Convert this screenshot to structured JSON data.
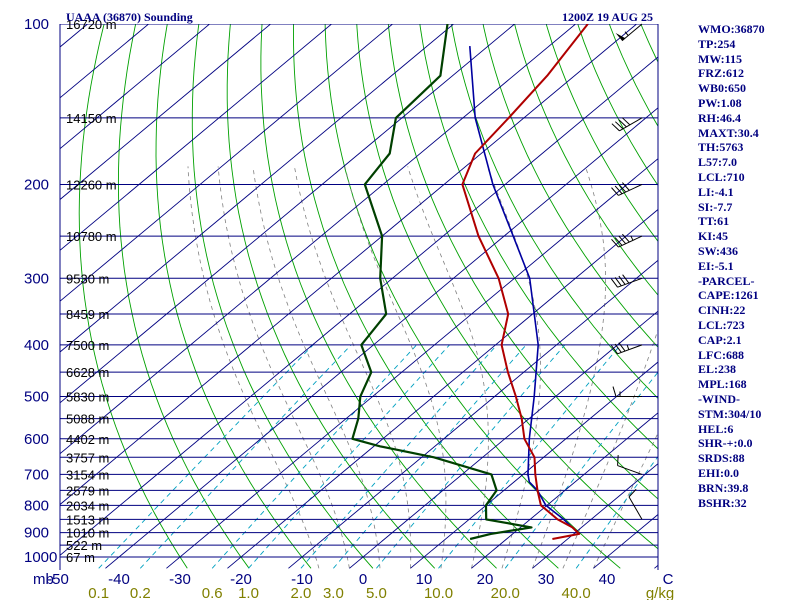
{
  "header": {
    "station": "UAAA (36870) Sounding",
    "time": "1200Z 19 AUG 25"
  },
  "stats": [
    "WMO:36870",
    "TP:254",
    "MW:115",
    "FRZ:612",
    "WB0:650",
    "PW:1.08",
    "RH:46.4",
    "MAXT:30.4",
    "TH:5763",
    "L57:7.0",
    "LCL:710",
    "LI:-4.1",
    "SI:-7.7",
    "TT:61",
    "KI:45",
    "SW:436",
    "EI:-5.1",
    "-PARCEL-",
    "CAPE:1261",
    "CINH:22",
    "LCL:723",
    "CAP:2.1",
    "LFC:688",
    "EL:238",
    "MPL:168",
    "-WIND-",
    "STM:304/10",
    "HEL:6",
    "SHR-+:0.0",
    "SRDS:88",
    "EHI:0.0",
    "BRN:39.8",
    "BSHR:32"
  ],
  "colors": {
    "isobar": "#000080",
    "isotherm": "#000080",
    "dry_adiabat": "#00a000",
    "mixing_ratio": "#00a0c0",
    "moist_adiabat": "#808080",
    "temperature": "#b00000",
    "dewpoint": "#004000",
    "parcel": "#0000a0",
    "axis_text": "#000080",
    "mixing_text": "#808000"
  },
  "chart_data": {
    "type": "skew-t",
    "y_unit": "mb",
    "x_unit": "C",
    "pressure_ticks": [
      100,
      200,
      300,
      400,
      500,
      600,
      700,
      800,
      900,
      1000
    ],
    "height_labels": [
      {
        "p": 100,
        "label": "16720 m"
      },
      {
        "p": 150,
        "label": "14150 m"
      },
      {
        "p": 200,
        "label": "12260 m"
      },
      {
        "p": 250,
        "label": "10780 m"
      },
      {
        "p": 300,
        "label": "9530 m"
      },
      {
        "p": 350,
        "label": "8459 m"
      },
      {
        "p": 400,
        "label": "7500 m"
      },
      {
        "p": 450,
        "label": "6628 m"
      },
      {
        "p": 500,
        "label": "5830 m"
      },
      {
        "p": 550,
        "label": "5088 m"
      },
      {
        "p": 600,
        "label": "4402 m"
      },
      {
        "p": 650,
        "label": "3757 m"
      },
      {
        "p": 700,
        "label": "3154 m"
      },
      {
        "p": 750,
        "label": "2579 m"
      },
      {
        "p": 800,
        "label": "2034 m"
      },
      {
        "p": 850,
        "label": "1513 m"
      },
      {
        "p": 900,
        "label": "1010 m"
      },
      {
        "p": 950,
        "label": "522 m"
      },
      {
        "p": 1000,
        "label": "67 m"
      }
    ],
    "temperature_ticks": [
      -50,
      -40,
      -30,
      -20,
      -10,
      0,
      10,
      20,
      30,
      40,
      50
    ],
    "temperature_tick_labels": [
      "-50",
      "-40",
      "-30",
      "-20",
      "-10",
      "0",
      "10",
      "20",
      "30",
      "40",
      "C"
    ],
    "mixing_ratio_labels": [
      {
        "w": 0.1,
        "label": "0.1"
      },
      {
        "w": 0.2,
        "label": "0.2"
      },
      {
        "w": 0.6,
        "label": "0.6"
      },
      {
        "w": 1.0,
        "label": "1.0"
      },
      {
        "w": 2.0,
        "label": "2.0"
      },
      {
        "w": 3.0,
        "label": "3.0"
      },
      {
        "w": 5.0,
        "label": "5.0"
      },
      {
        "w": 10.0,
        "label": "10.0"
      },
      {
        "w": 20.0,
        "label": "20.0"
      },
      {
        "w": 40.0,
        "label": "40.0"
      }
    ],
    "mixing_ratio_unit": "g/kg",
    "series": [
      {
        "name": "temperature",
        "points": [
          [
            925,
            27.5
          ],
          [
            905,
            30.9
          ],
          [
            880,
            28.5
          ],
          [
            850,
            24.5
          ],
          [
            800,
            19.0
          ],
          [
            750,
            15.5
          ],
          [
            700,
            12.0
          ],
          [
            650,
            8.5
          ],
          [
            600,
            3.2
          ],
          [
            550,
            -1.2
          ],
          [
            500,
            -6.5
          ],
          [
            450,
            -12.6
          ],
          [
            400,
            -19.0
          ],
          [
            350,
            -24.0
          ],
          [
            300,
            -32.6
          ],
          [
            250,
            -44.2
          ],
          [
            200,
            -57.0
          ],
          [
            175,
            -61.0
          ],
          [
            150,
            -62.5
          ],
          [
            125,
            -64.5
          ],
          [
            100,
            -68.0
          ]
        ]
      },
      {
        "name": "dewpoint",
        "points": [
          [
            925,
            14.0
          ],
          [
            905,
            16.4
          ],
          [
            880,
            21.8
          ],
          [
            850,
            12.8
          ],
          [
            800,
            10.0
          ],
          [
            750,
            8.8
          ],
          [
            700,
            4.8
          ],
          [
            650,
            -8.0
          ],
          [
            620,
            -19.0
          ],
          [
            600,
            -25.0
          ],
          [
            550,
            -28.0
          ],
          [
            500,
            -32.0
          ],
          [
            450,
            -35.0
          ],
          [
            400,
            -42.0
          ],
          [
            350,
            -44.0
          ],
          [
            300,
            -52.0
          ],
          [
            250,
            -60.0
          ],
          [
            200,
            -73.0
          ],
          [
            175,
            -75.0
          ],
          [
            150,
            -81.0
          ],
          [
            125,
            -82.0
          ],
          [
            100,
            -91.0
          ]
        ]
      },
      {
        "name": "parcel",
        "points": [
          [
            905,
            30.9
          ],
          [
            850,
            25.5
          ],
          [
            800,
            19.8
          ],
          [
            750,
            15.5
          ],
          [
            723,
            12.5
          ],
          [
            700,
            10.8
          ],
          [
            600,
            4.0
          ],
          [
            500,
            -3.5
          ],
          [
            400,
            -13.0
          ],
          [
            300,
            -27.5
          ],
          [
            250,
            -38.5
          ],
          [
            200,
            -52.0
          ],
          [
            150,
            -68.0
          ],
          [
            110,
            -83.0
          ]
        ]
      }
    ],
    "wind_barbs": [
      {
        "p": 100,
        "dir": 230,
        "kt": 55
      },
      {
        "p": 150,
        "dir": 240,
        "kt": 40
      },
      {
        "p": 200,
        "dir": 245,
        "kt": 40
      },
      {
        "p": 250,
        "dir": 245,
        "kt": 45
      },
      {
        "p": 300,
        "dir": 250,
        "kt": 40
      },
      {
        "p": 400,
        "dir": 250,
        "kt": 35
      },
      {
        "p": 500,
        "dir": 270,
        "kt": 15
      },
      {
        "p": 700,
        "dir": 290,
        "kt": 10
      },
      {
        "p": 850,
        "dir": 330,
        "kt": 10
      }
    ]
  }
}
